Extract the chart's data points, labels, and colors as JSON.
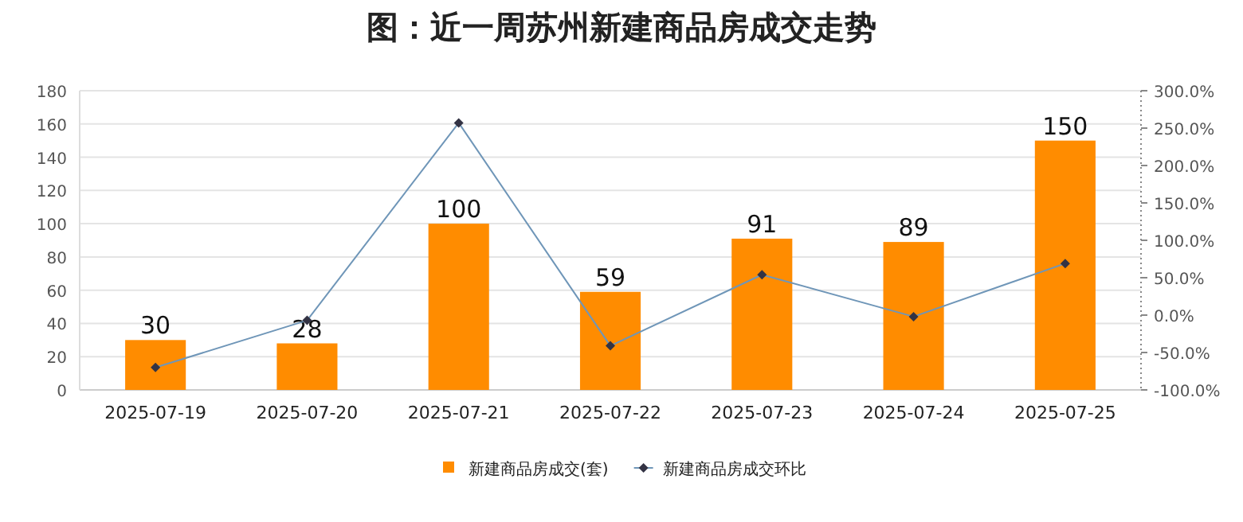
{
  "chart_data": {
    "type": "bar",
    "title": "图：近一周苏州新建商品房成交走势",
    "categories": [
      "2025-07-19",
      "2025-07-20",
      "2025-07-21",
      "2025-07-22",
      "2025-07-23",
      "2025-07-24",
      "2025-07-25"
    ],
    "series": [
      {
        "name": "新建商品房成交(套)",
        "color": "#ff8c00",
        "values": [
          30,
          28,
          100,
          59,
          91,
          89,
          150
        ],
        "value_labels": [
          "30",
          "28",
          "100",
          "59",
          "91",
          "89",
          "150"
        ]
      },
      {
        "name": "新建商品房成交环比",
        "type": "line",
        "axis": "y2",
        "color": "#6f96b8",
        "marker": "diamond",
        "values": [
          -70,
          -7,
          257,
          -41,
          54,
          -2,
          69
        ]
      }
    ],
    "ylim": [
      0,
      180
    ],
    "yticks": [
      0,
      20,
      40,
      60,
      80,
      100,
      120,
      140,
      160,
      180
    ],
    "y2lim": [
      -100,
      300
    ],
    "y2ticks": [
      {
        "value": -100,
        "label": "-100.0%"
      },
      {
        "value": -50,
        "label": "-50.0%"
      },
      {
        "value": 0,
        "label": "0.0%"
      },
      {
        "value": 50,
        "label": "50.0%"
      },
      {
        "value": 100,
        "label": "100.0%"
      },
      {
        "value": 150,
        "label": "150.0%"
      },
      {
        "value": 200,
        "label": "200.0%"
      },
      {
        "value": 250,
        "label": "250.0%"
      },
      {
        "value": 300,
        "label": "300.0%"
      }
    ],
    "grid": "y",
    "legend": "bottom"
  }
}
